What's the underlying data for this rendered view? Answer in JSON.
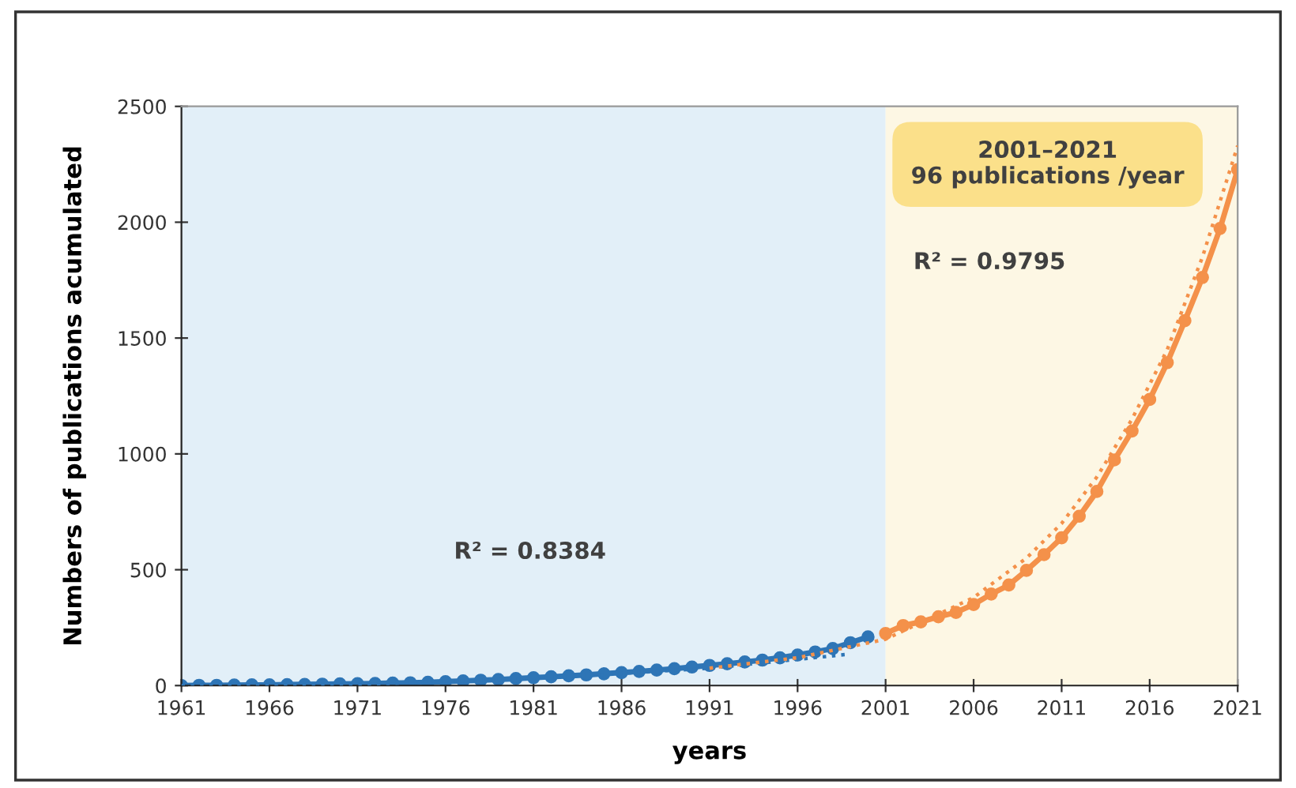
{
  "chart_data": {
    "type": "line",
    "xlabel": "years",
    "ylabel": "Numbers of publications acumulated",
    "xlim": [
      1961,
      2021
    ],
    "xticks": [
      1961,
      1966,
      1971,
      1976,
      1981,
      1986,
      1991,
      1996,
      2001,
      2006,
      2011,
      2016,
      2021
    ],
    "ylim": [
      0,
      2500
    ],
    "yticks": [
      0,
      500,
      1000,
      1500,
      2000,
      2500
    ],
    "grid": false,
    "bands": [
      {
        "axis": "x",
        "from": 1961,
        "to": 2001,
        "color": "#e2eff8"
      },
      {
        "axis": "x",
        "from": 2001,
        "to": 2021,
        "color": "#fdf7e4"
      }
    ],
    "annotations": [
      "2001–2021\n96 publications /year",
      "R² = 0.8384",
      "R² = 0.9795"
    ],
    "series": [
      {
        "color": "#2e75b6",
        "marker": "circle",
        "line_style": "solid",
        "x": [
          1961,
          1962,
          1963,
          1964,
          1965,
          1966,
          1967,
          1968,
          1969,
          1970,
          1971,
          1972,
          1973,
          1974,
          1975,
          1976,
          1977,
          1978,
          1979,
          1980,
          1981,
          1982,
          1983,
          1984,
          1985,
          1986,
          1987,
          1988,
          1989,
          1990,
          1991,
          1992,
          1993,
          1994,
          1995,
          1996,
          1997,
          1998,
          1999,
          2000
        ],
        "values": [
          0,
          1,
          1,
          2,
          3,
          3,
          4,
          5,
          6,
          7,
          8,
          9,
          11,
          12,
          14,
          17,
          20,
          23,
          26,
          30,
          34,
          38,
          42,
          46,
          51,
          56,
          61,
          67,
          73,
          80,
          87,
          94,
          102,
          110,
          120,
          132,
          145,
          160,
          185,
          210
        ]
      },
      {
        "color": "#f4914a",
        "marker": "circle",
        "line_style": "solid",
        "x": [
          2001,
          2002,
          2003,
          2004,
          2005,
          2006,
          2007,
          2008,
          2009,
          2010,
          2011,
          2012,
          2013,
          2014,
          2015,
          2016,
          2017,
          2018,
          2019,
          2020,
          2021
        ],
        "values": [
          225,
          259,
          275,
          297,
          316,
          350,
          395,
          434,
          497,
          565,
          638,
          731,
          838,
          974,
          1099,
          1235,
          1394,
          1575,
          1762,
          1973,
          2227
        ]
      },
      {
        "color": "#2e75b6",
        "marker": "none",
        "line_style": "dotted",
        "x": [
          1961,
          1971,
          1981,
          1991,
          1999
        ],
        "values": [
          0,
          5,
          30,
          75,
          136
        ]
      },
      {
        "color": "#f4914a",
        "marker": "none",
        "line_style": "dotted",
        "x": [
          1991,
          1996,
          2001,
          2006,
          2009,
          2011,
          2013,
          2015,
          2017,
          2019,
          2021
        ],
        "values": [
          75,
          120,
          200,
          380,
          550,
          700,
          900,
          1150,
          1450,
          1850,
          2330
        ]
      }
    ]
  }
}
